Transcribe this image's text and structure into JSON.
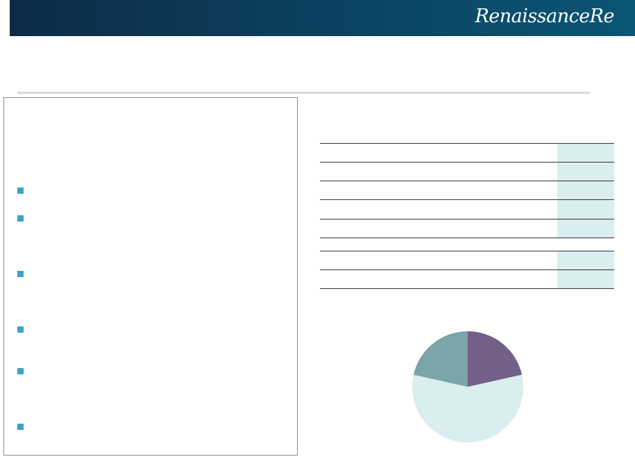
{
  "header": {
    "logo_text": "RenaissanceRe",
    "colors": {
      "dark": "#0d2b46",
      "light": "#0a5674"
    }
  },
  "bullets": {
    "count": 6,
    "color": "#3ea2c2"
  },
  "table": {
    "rows": 8,
    "highlight_color": "#daedf0"
  },
  "chart_data": {
    "type": "pie",
    "values": [
      21.5,
      57,
      21.5
    ],
    "colors": [
      "#725f8a",
      "#daedef",
      "#7ba5a8"
    ]
  }
}
